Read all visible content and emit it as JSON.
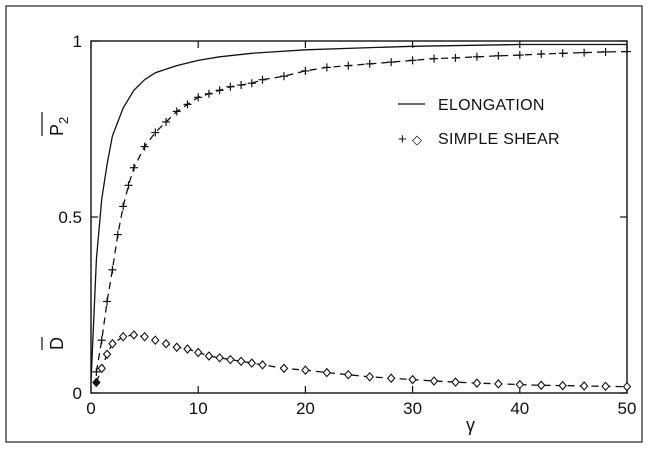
{
  "chart_data": {
    "type": "line",
    "x_ticks": [
      "0",
      "10",
      "20",
      "30",
      "40",
      "50"
    ],
    "y_ticks": [
      "0",
      "0.5",
      "1"
    ],
    "xlim": [
      0,
      50
    ],
    "ylim": [
      0,
      1
    ],
    "xlabel": "γ",
    "ylabels": {
      "upper": "P",
      "upper_subscript": "2",
      "lower": "D"
    },
    "legend": {
      "position": "top-right",
      "entries": [
        {
          "label": "ELONGATION",
          "marker": "—"
        },
        {
          "label": "SIMPLE SHEAR",
          "marker": "+ ◇"
        }
      ]
    },
    "series": [
      {
        "name": "ELONGATION",
        "style": "solid",
        "x": [
          0,
          0.5,
          1,
          1.5,
          2,
          3,
          4,
          5,
          6,
          8,
          10,
          12,
          15,
          20,
          25,
          30,
          40,
          50
        ],
        "y": [
          0.03,
          0.38,
          0.55,
          0.65,
          0.73,
          0.81,
          0.86,
          0.89,
          0.91,
          0.93,
          0.945,
          0.955,
          0.965,
          0.975,
          0.98,
          0.985,
          0.99,
          0.99
        ]
      },
      {
        "name": "SIMPLE SHEAR",
        "quantity": "P2",
        "style": "dashed",
        "marker": "+",
        "x": [
          0.5,
          1,
          1.5,
          2,
          2.5,
          3,
          3.5,
          4,
          5,
          6,
          7,
          8,
          9,
          10,
          11,
          12,
          13,
          14,
          15,
          16,
          18,
          20,
          22,
          24,
          26,
          28,
          30,
          32,
          34,
          36,
          38,
          40,
          42,
          44,
          46,
          48,
          50
        ],
        "y": [
          0.06,
          0.15,
          0.26,
          0.35,
          0.45,
          0.53,
          0.59,
          0.64,
          0.7,
          0.74,
          0.77,
          0.8,
          0.82,
          0.84,
          0.85,
          0.86,
          0.87,
          0.875,
          0.88,
          0.89,
          0.9,
          0.915,
          0.925,
          0.93,
          0.935,
          0.94,
          0.945,
          0.95,
          0.952,
          0.955,
          0.958,
          0.96,
          0.963,
          0.965,
          0.967,
          0.969,
          0.97
        ]
      },
      {
        "name": "SIMPLE SHEAR",
        "quantity": "D",
        "style": "dashed",
        "marker": "◇",
        "x": [
          0.5,
          1,
          1.5,
          2,
          3,
          4,
          5,
          6,
          7,
          8,
          9,
          10,
          11,
          12,
          13,
          14,
          15,
          16,
          18,
          20,
          22,
          24,
          26,
          28,
          30,
          32,
          34,
          36,
          38,
          40,
          42,
          44,
          46,
          48,
          50
        ],
        "y": [
          0.03,
          0.07,
          0.11,
          0.14,
          0.16,
          0.165,
          0.16,
          0.15,
          0.14,
          0.13,
          0.125,
          0.115,
          0.105,
          0.1,
          0.095,
          0.09,
          0.085,
          0.08,
          0.07,
          0.065,
          0.058,
          0.052,
          0.046,
          0.042,
          0.038,
          0.034,
          0.031,
          0.028,
          0.026,
          0.024,
          0.022,
          0.021,
          0.02,
          0.019,
          0.018
        ]
      }
    ]
  }
}
